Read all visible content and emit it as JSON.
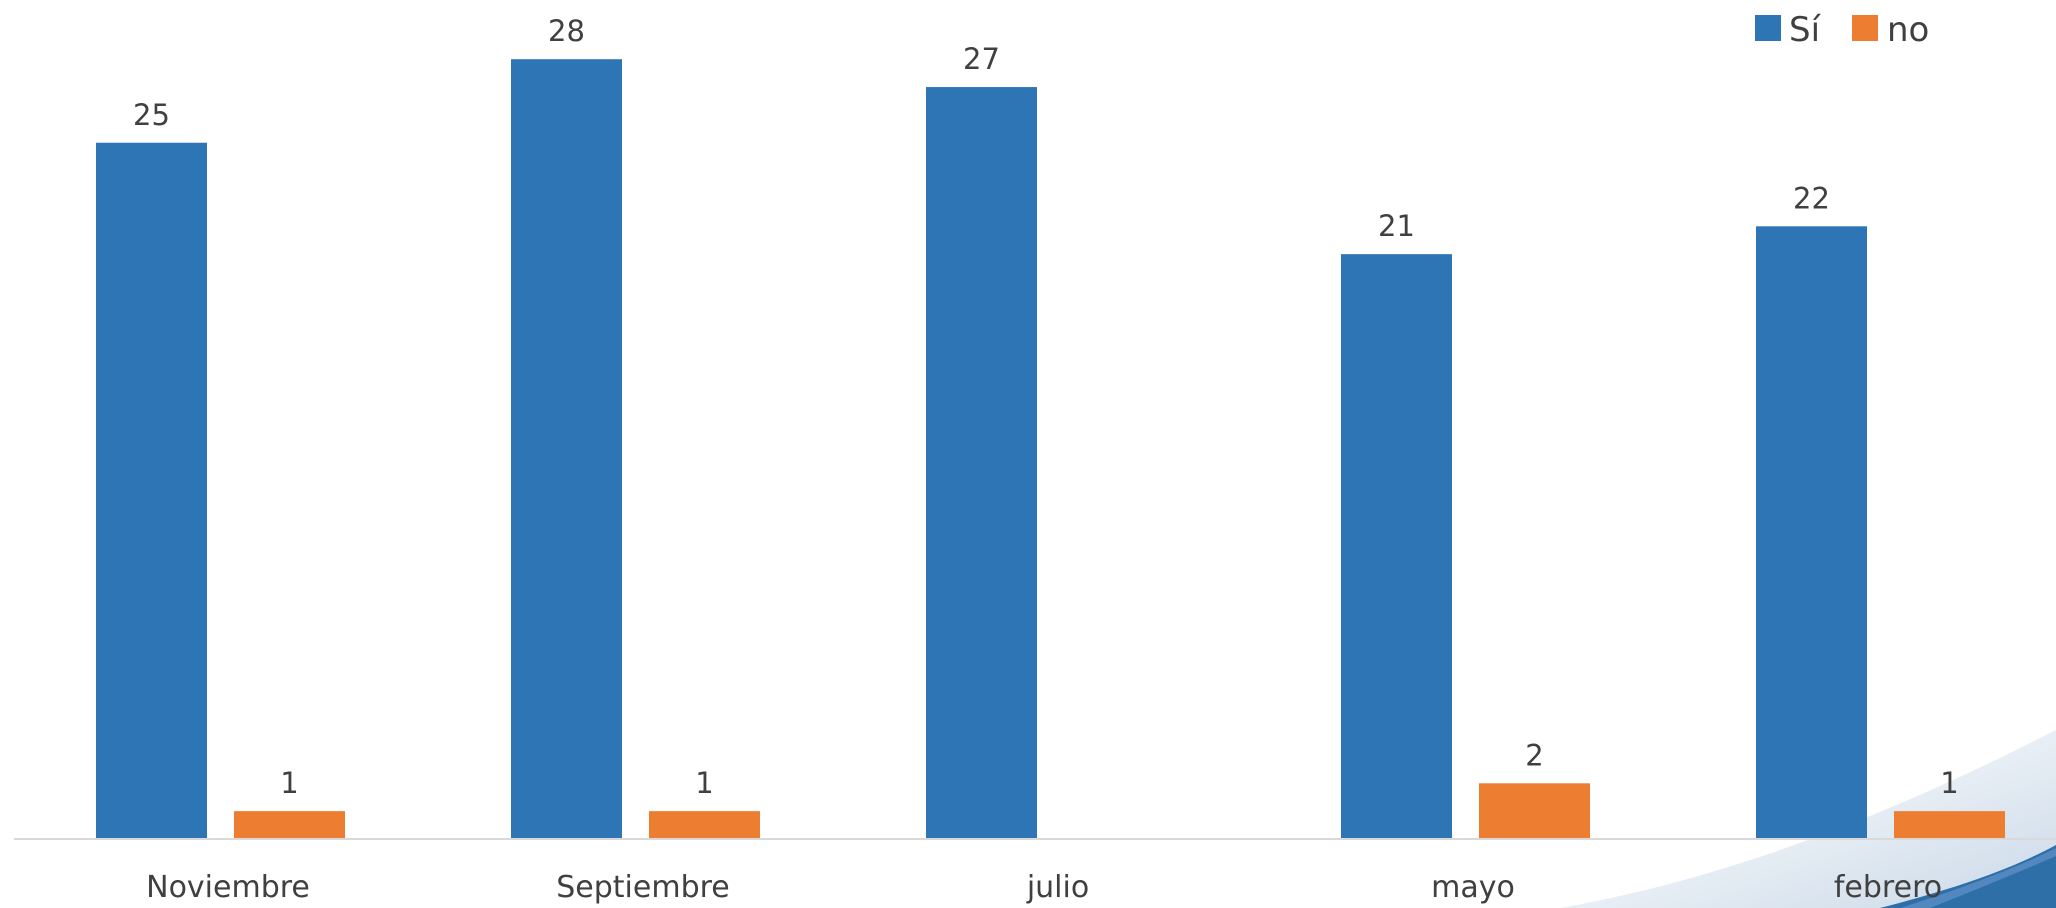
{
  "chart_data": {
    "type": "bar",
    "title": "",
    "xlabel": "",
    "ylabel": "",
    "categories": [
      "Noviembre",
      "Septiembre",
      "julio",
      "mayo",
      "febrero"
    ],
    "series": [
      {
        "name": "Sí",
        "values": [
          25,
          28,
          27,
          21,
          22
        ],
        "labels": [
          "25",
          "28",
          "27",
          "21",
          "22"
        ]
      },
      {
        "name": "no",
        "values": [
          1,
          1,
          0,
          2,
          1
        ],
        "labels": [
          "1",
          "1",
          "",
          "2",
          "1"
        ]
      }
    ],
    "ylim": [
      0,
      30
    ],
    "grid": false,
    "legend_position": "top-right",
    "colors": {
      "si": "#2E75B6",
      "no": "#ED7D31",
      "axis": "#D9D9D9",
      "text": "#404040",
      "swoosh_dark": "#2F6FA8",
      "swoosh_light": "#E6EDF4"
    }
  }
}
